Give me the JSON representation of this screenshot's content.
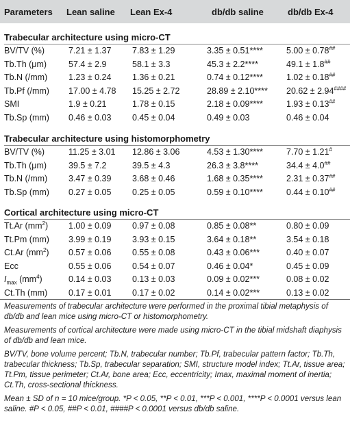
{
  "header": {
    "parameters": "Parameters",
    "lean_saline": "Lean saline",
    "lean_ex4": "Lean Ex-4",
    "db_saline": "db/db saline",
    "db_ex4": "db/db Ex-4"
  },
  "sections": [
    {
      "title": "Trabecular architecture using micro-CT",
      "rows": [
        {
          "param": "BV/TV (%)",
          "lean_saline": "7.21 ± 1.37",
          "lean_ex4": "7.83 ± 1.29",
          "db_saline": "3.35 ± 0.51****",
          "db_ex4": "5.00 ± 0.78",
          "db_ex4_sig": "##"
        },
        {
          "param": "Tb.Th (μm)",
          "lean_saline": "57.4 ± 2.9",
          "lean_ex4": "58.1 ± 3.3",
          "db_saline": "45.3 ± 2.2****",
          "db_ex4": "49.1 ± 1.8",
          "db_ex4_sig": "##"
        },
        {
          "param": "Tb.N (/mm)",
          "lean_saline": "1.23 ± 0.24",
          "lean_ex4": "1.36 ± 0.21",
          "db_saline": "0.74 ± 0.12****",
          "db_ex4": "1.02 ± 0.18",
          "db_ex4_sig": "##"
        },
        {
          "param": "Tb.Pf (/mm)",
          "lean_saline": "17.00 ± 4.78",
          "lean_ex4": "15.25 ± 2.72",
          "db_saline": "28.89 ± 2.10****",
          "db_ex4": "20.62 ± 2.94",
          "db_ex4_sig": "####"
        },
        {
          "param": "SMI",
          "lean_saline": "1.9 ± 0.21",
          "lean_ex4": "1.78 ± 0.15",
          "db_saline": "2.18 ± 0.09****",
          "db_ex4": "1.93 ± 0.13",
          "db_ex4_sig": "##"
        },
        {
          "param": "Tb.Sp (mm)",
          "lean_saline": "0.46 ± 0.03",
          "lean_ex4": "0.45 ± 0.04",
          "db_saline": "0.49 ± 0.03",
          "db_ex4": "0.46 ± 0.04",
          "db_ex4_sig": ""
        }
      ]
    },
    {
      "title": "Trabecular architecture using histomorphometry",
      "rows": [
        {
          "param": "BV/TV (%)",
          "lean_saline": "11.25 ± 3.01",
          "lean_ex4": "12.86 ± 3.06",
          "db_saline": "4.53 ± 1.30****",
          "db_ex4": "7.70 ± 1.21",
          "db_ex4_sig": "#"
        },
        {
          "param": "Tb.Th (μm)",
          "lean_saline": "39.5 ± 7.2",
          "lean_ex4": "39.5 ± 4.3",
          "db_saline": "26.3 ± 3.8****",
          "db_ex4": "34.4 ± 4.0",
          "db_ex4_sig": "##"
        },
        {
          "param": "Tb.N (/mm)",
          "lean_saline": "3.47 ± 0.39",
          "lean_ex4": "3.68 ± 0.46",
          "db_saline": "1.68 ± 0.35****",
          "db_ex4": "2.31 ± 0.37",
          "db_ex4_sig": "##"
        },
        {
          "param": "Tb.Sp (mm)",
          "lean_saline": "0.27 ± 0.05",
          "lean_ex4": "0.25 ± 0.05",
          "db_saline": "0.59 ± 0.10****",
          "db_ex4": "0.44 ± 0.10",
          "db_ex4_sig": "##"
        }
      ]
    },
    {
      "title": "Cortical architecture using micro-CT",
      "rows": [
        {
          "param": "Tt.Ar (mm",
          "param_sup": "2",
          "param_tail": ")",
          "lean_saline": "1.00 ± 0.09",
          "lean_ex4": "0.97 ± 0.08",
          "db_saline": "0.85 ± 0.08**",
          "db_ex4": "0.80 ± 0.09",
          "db_ex4_sig": ""
        },
        {
          "param": "Tt.Pm (mm)",
          "lean_saline": "3.99 ± 0.19",
          "lean_ex4": "3.93 ± 0.15",
          "db_saline": "3.64 ± 0.18**",
          "db_ex4": "3.54 ± 0.18",
          "db_ex4_sig": ""
        },
        {
          "param": "Ct.Ar (mm",
          "param_sup": "2",
          "param_tail": ")",
          "lean_saline": "0.57 ± 0.06",
          "lean_ex4": "0.55 ± 0.08",
          "db_saline": "0.43 ± 0.06***",
          "db_ex4": "0.40 ± 0.07",
          "db_ex4_sig": ""
        },
        {
          "param": "Ecc",
          "lean_saline": "0.55 ± 0.06",
          "lean_ex4": "0.54 ± 0.07",
          "db_saline": "0.46 ± 0.04*",
          "db_ex4": "0.45 ± 0.09",
          "db_ex4_sig": ""
        },
        {
          "param": "I",
          "param_sub": "max",
          "param_mid": " (mm",
          "param_sup": "4",
          "param_tail": ")",
          "lean_saline": "0.14 ± 0.03",
          "lean_ex4": "0.13 ± 0.03",
          "db_saline": "0.09 ± 0.02***",
          "db_ex4": "0.08 ± 0.02",
          "db_ex4_sig": ""
        },
        {
          "param": "Ct.Th (mm)",
          "lean_saline": "0.17 ± 0.01",
          "lean_ex4": "0.17 ± 0.02",
          "db_saline": "0.14 ± 0.02***",
          "db_ex4": "0.13 ± 0.02",
          "db_ex4_sig": ""
        }
      ]
    }
  ],
  "notes": [
    "Measurements of trabecular architecture were performed in the proximal tibial metaphysis of db/db and lean mice using micro-CT or histomorphometry.",
    "Measurements of cortical architecture were made using micro-CT in the tibial midshaft diaphysis of db/db and lean mice.",
    "BV/TV, bone volume percent; Tb.N, trabecular number; Tb.Pf, trabecular pattern factor; Tb.Th, trabecular thickness; Tb.Sp, trabecular separation; SMI, structure model index; Tt.Ar, tissue area; Tt.Pm, tissue perimeter; Ct.Ar, bone area; Ecc, eccentricity; Imax, maximal moment of inertia; Ct.Th, cross-sectional thickness.",
    "Mean ± SD of n = 10 mice/group. *P < 0.05, **P < 0.01, ***P < 0.001, ****P < 0.0001 versus lean saline. #P < 0.05, ##P < 0.01, ####P < 0.0001 versus db/db saline."
  ]
}
